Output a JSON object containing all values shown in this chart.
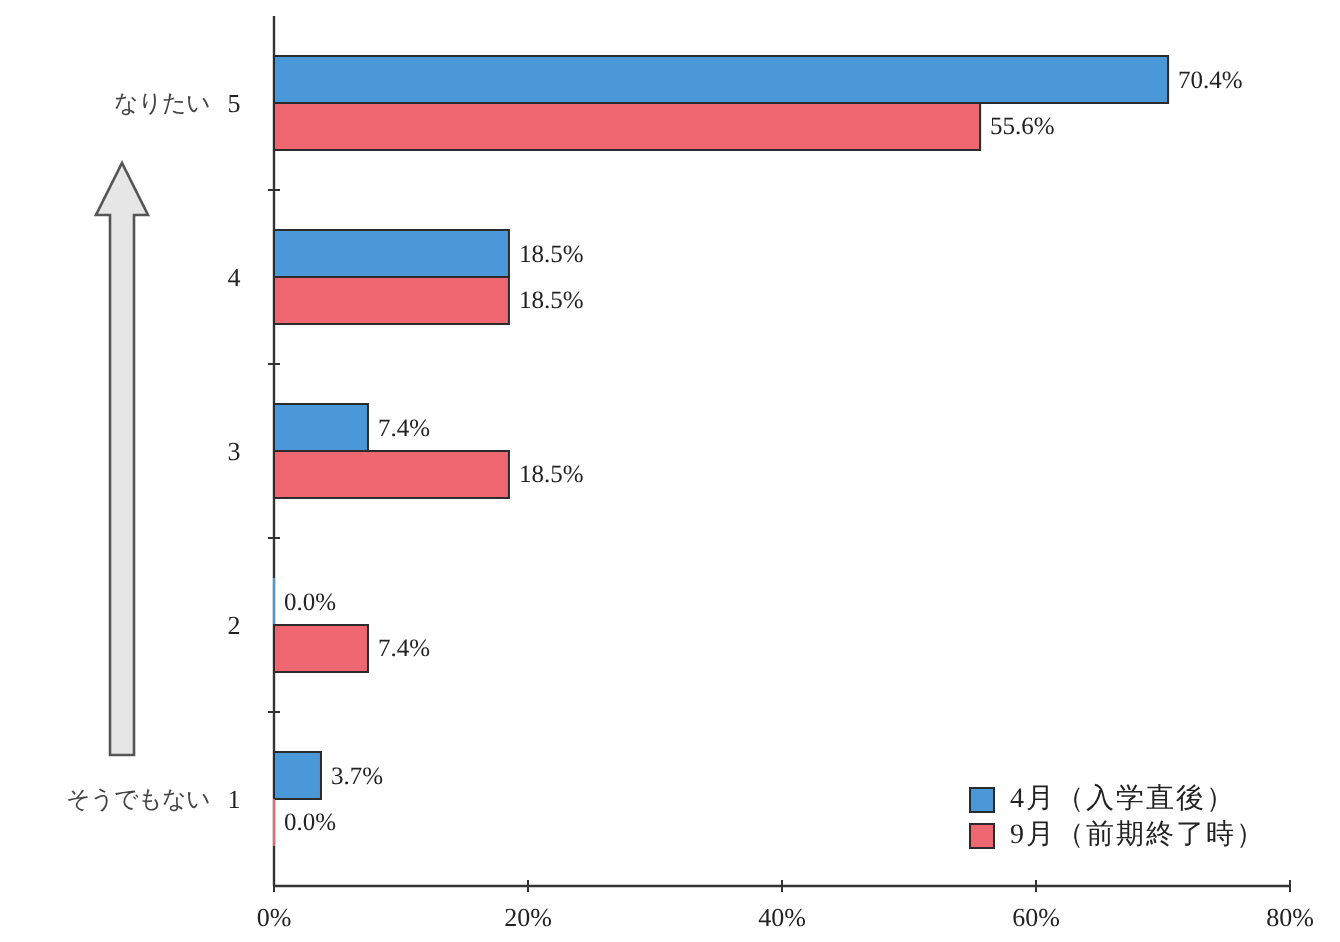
{
  "chart_data": {
    "type": "bar",
    "orientation": "horizontal",
    "categories": [
      "5",
      "4",
      "3",
      "2",
      "1"
    ],
    "series": [
      {
        "name": "4月（入学直後）",
        "color": "#4a98d8",
        "values": [
          70.4,
          18.5,
          7.4,
          0.0,
          3.7
        ],
        "value_labels": [
          "70.4%",
          "18.5%",
          "7.4%",
          "0.0%",
          "3.7%"
        ]
      },
      {
        "name": "9月（前期終了時）",
        "color": "#ee6670",
        "values": [
          55.6,
          18.5,
          18.5,
          7.4,
          0.0
        ],
        "value_labels": [
          "55.6%",
          "18.5%",
          "18.5%",
          "7.4%",
          "0.0%"
        ]
      }
    ],
    "xlim": [
      0,
      80
    ],
    "xticks": [
      {
        "value": 0,
        "label": "0%"
      },
      {
        "value": 20,
        "label": "20%"
      },
      {
        "value": 40,
        "label": "40%"
      },
      {
        "value": 60,
        "label": "60%"
      },
      {
        "value": 80,
        "label": "80%"
      }
    ],
    "legend": "bottom right",
    "annotations": [
      "なりたい",
      "そうでもない"
    ]
  }
}
